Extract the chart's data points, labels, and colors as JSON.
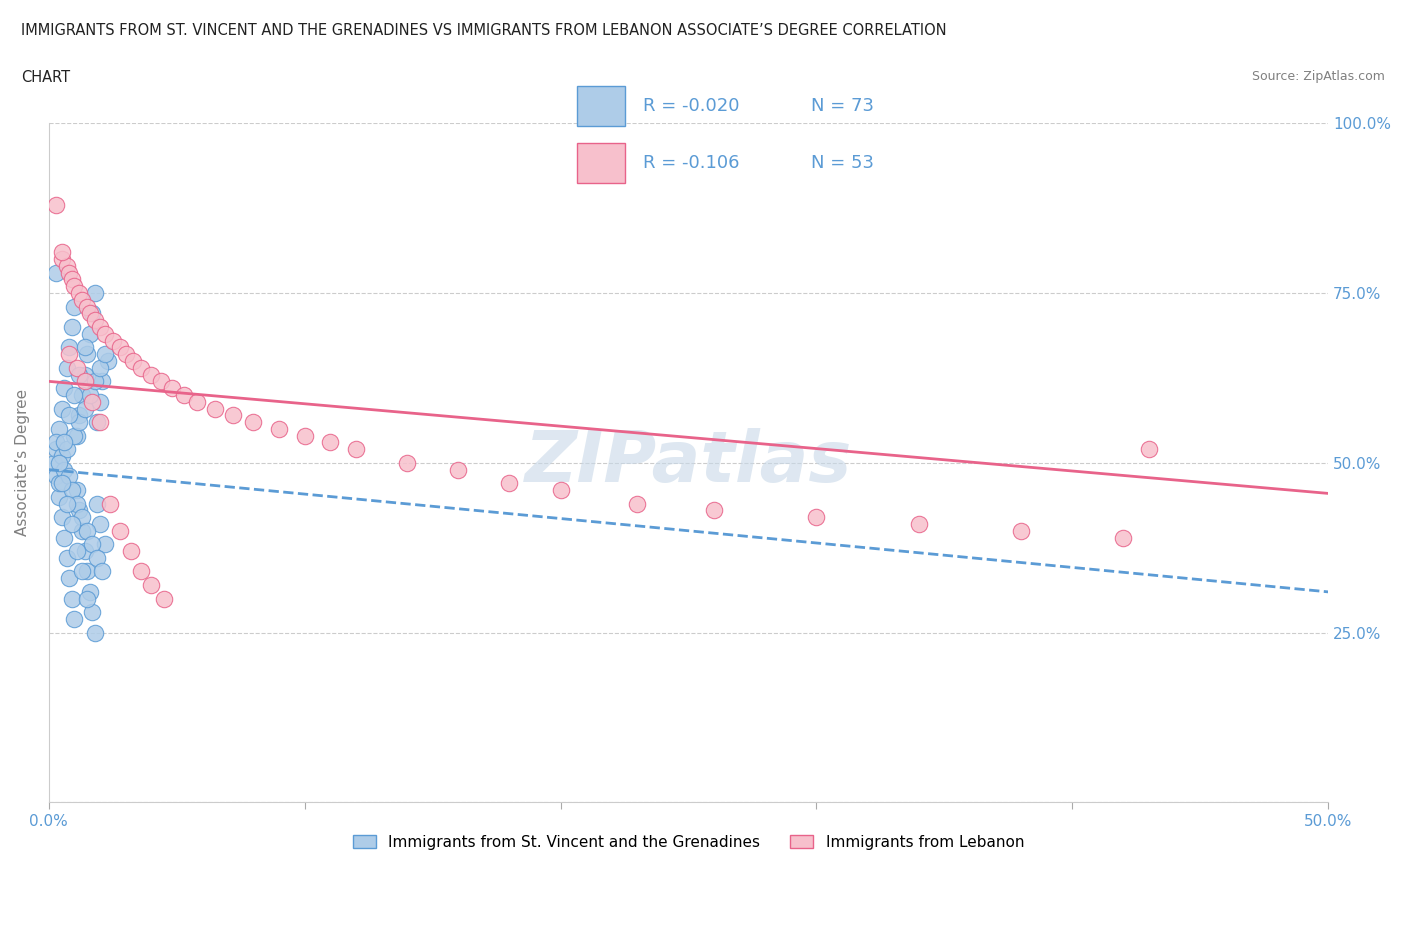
{
  "title_line1": "IMMIGRANTS FROM ST. VINCENT AND THE GRENADINES VS IMMIGRANTS FROM LEBANON ASSOCIATE’S DEGREE CORRELATION",
  "title_line2": "CHART",
  "source": "Source: ZipAtlas.com",
  "ylabel": "Associate’s Degree",
  "x_min": 0.0,
  "x_max": 0.5,
  "y_min": 0.0,
  "y_max": 1.0,
  "x_ticks": [
    0.0,
    0.1,
    0.2,
    0.3,
    0.4,
    0.5
  ],
  "x_tick_labels": [
    "0.0%",
    "",
    "",
    "",
    "",
    "50.0%"
  ],
  "y_ticks": [
    0.0,
    0.25,
    0.5,
    0.75,
    1.0
  ],
  "y_tick_labels_right": [
    "",
    "25.0%",
    "50.0%",
    "75.0%",
    "100.0%"
  ],
  "color_blue": "#aecce8",
  "color_pink": "#f7c0cc",
  "color_blue_line": "#5b9bd5",
  "color_pink_line": "#e8638a",
  "legend_r1": "R = -0.020",
  "legend_n1": "N = 73",
  "legend_r2": "R = -0.106",
  "legend_n2": "N = 53",
  "label1": "Immigrants from St. Vincent and the Grenadines",
  "label2": "Immigrants from Lebanon",
  "watermark": "ZIPatlas",
  "blue_scatter_x": [
    0.002,
    0.003,
    0.003,
    0.004,
    0.004,
    0.005,
    0.005,
    0.006,
    0.006,
    0.007,
    0.007,
    0.008,
    0.008,
    0.009,
    0.009,
    0.01,
    0.01,
    0.011,
    0.011,
    0.012,
    0.012,
    0.013,
    0.013,
    0.014,
    0.014,
    0.015,
    0.015,
    0.016,
    0.016,
    0.017,
    0.017,
    0.018,
    0.018,
    0.019,
    0.019,
    0.02,
    0.02,
    0.021,
    0.022,
    0.023,
    0.003,
    0.004,
    0.005,
    0.006,
    0.007,
    0.008,
    0.009,
    0.01,
    0.011,
    0.012,
    0.013,
    0.014,
    0.015,
    0.016,
    0.017,
    0.018,
    0.019,
    0.02,
    0.021,
    0.022,
    0.004,
    0.005,
    0.006,
    0.007,
    0.008,
    0.009,
    0.01,
    0.011,
    0.012,
    0.013,
    0.014,
    0.015,
    0.003
  ],
  "blue_scatter_y": [
    0.5,
    0.52,
    0.48,
    0.55,
    0.45,
    0.58,
    0.42,
    0.61,
    0.39,
    0.64,
    0.36,
    0.67,
    0.33,
    0.7,
    0.3,
    0.73,
    0.27,
    0.54,
    0.46,
    0.57,
    0.43,
    0.6,
    0.4,
    0.63,
    0.37,
    0.66,
    0.34,
    0.69,
    0.31,
    0.72,
    0.28,
    0.75,
    0.25,
    0.56,
    0.44,
    0.59,
    0.41,
    0.62,
    0.38,
    0.65,
    0.53,
    0.47,
    0.51,
    0.49,
    0.52,
    0.48,
    0.46,
    0.54,
    0.44,
    0.56,
    0.42,
    0.58,
    0.4,
    0.6,
    0.38,
    0.62,
    0.36,
    0.64,
    0.34,
    0.66,
    0.5,
    0.47,
    0.53,
    0.44,
    0.57,
    0.41,
    0.6,
    0.37,
    0.63,
    0.34,
    0.67,
    0.3,
    0.78
  ],
  "pink_scatter_x": [
    0.003,
    0.005,
    0.007,
    0.008,
    0.009,
    0.01,
    0.012,
    0.013,
    0.015,
    0.016,
    0.018,
    0.02,
    0.022,
    0.025,
    0.028,
    0.03,
    0.033,
    0.036,
    0.04,
    0.044,
    0.048,
    0.053,
    0.058,
    0.065,
    0.072,
    0.08,
    0.09,
    0.1,
    0.11,
    0.12,
    0.14,
    0.16,
    0.18,
    0.2,
    0.23,
    0.26,
    0.3,
    0.34,
    0.38,
    0.42,
    0.005,
    0.008,
    0.011,
    0.014,
    0.017,
    0.02,
    0.024,
    0.028,
    0.032,
    0.036,
    0.04,
    0.045,
    0.43
  ],
  "pink_scatter_y": [
    0.88,
    0.8,
    0.79,
    0.78,
    0.77,
    0.76,
    0.75,
    0.74,
    0.73,
    0.72,
    0.71,
    0.7,
    0.69,
    0.68,
    0.67,
    0.66,
    0.65,
    0.64,
    0.63,
    0.62,
    0.61,
    0.6,
    0.59,
    0.58,
    0.57,
    0.56,
    0.55,
    0.54,
    0.53,
    0.52,
    0.5,
    0.49,
    0.47,
    0.46,
    0.44,
    0.43,
    0.42,
    0.41,
    0.4,
    0.39,
    0.81,
    0.66,
    0.64,
    0.62,
    0.59,
    0.56,
    0.44,
    0.4,
    0.37,
    0.34,
    0.32,
    0.3,
    0.52
  ],
  "blue_line_x": [
    0.0,
    0.5
  ],
  "blue_line_y": [
    0.49,
    0.31
  ],
  "pink_line_x": [
    0.0,
    0.5
  ],
  "pink_line_y": [
    0.62,
    0.455
  ]
}
